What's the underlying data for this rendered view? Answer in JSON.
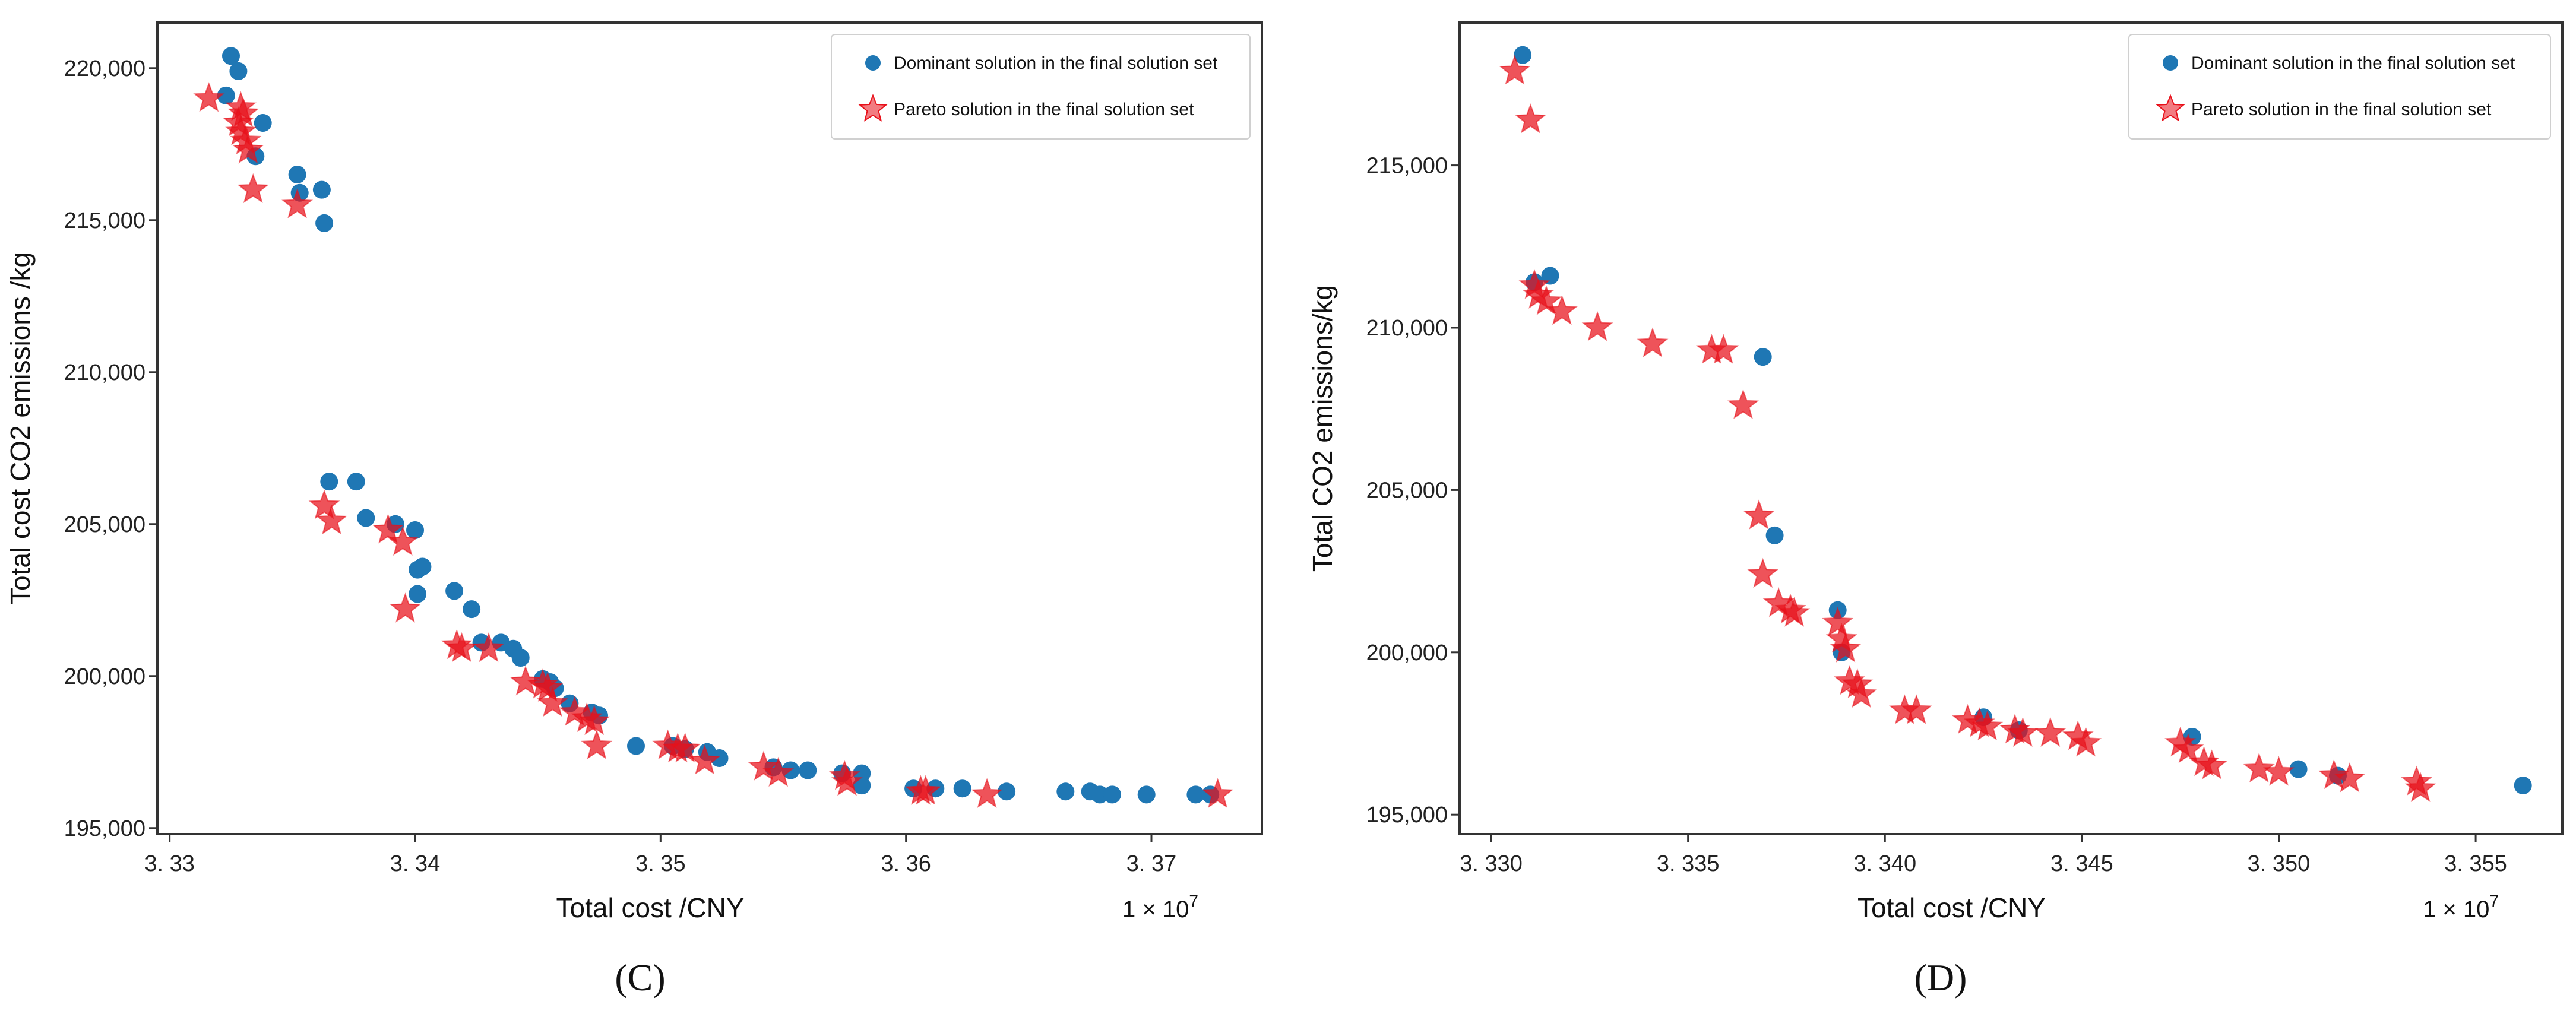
{
  "colors": {
    "dominant": "#1f77b4",
    "pareto": "#e8101a",
    "axes": "#333333"
  },
  "chart_data": [
    {
      "type": "scatter",
      "panel_caption": "(C)",
      "xlabel": "Total cost /CNY",
      "ylabel": "Total cost CO2 emissions /kg",
      "x_multiplier_base": "1 × 10",
      "x_multiplier_exp": "7",
      "xlim": [
        3.3295,
        3.3745
      ],
      "ylim": [
        194800,
        221500
      ],
      "xticks": [
        3.33,
        3.34,
        3.35,
        3.36,
        3.37
      ],
      "xtick_labels": [
        "3. 33",
        "3. 34",
        "3. 35",
        "3. 36",
        "3. 37"
      ],
      "yticks": [
        195000,
        200000,
        205000,
        210000,
        215000,
        220000
      ],
      "ytick_labels": [
        "195,000",
        "200,000",
        "205,000",
        "210,000",
        "215,000",
        "220,000"
      ],
      "legend_position": "top-right",
      "series": [
        {
          "name": "Dominant solution in the final solution set",
          "marker": "circle",
          "points": [
            [
              3.3325,
              220400
            ],
            [
              3.3328,
              219900
            ],
            [
              3.3323,
              219100
            ],
            [
              3.3338,
              218200
            ],
            [
              3.3335,
              217100
            ],
            [
              3.3352,
              216500
            ],
            [
              3.3353,
              215900
            ],
            [
              3.3362,
              216000
            ],
            [
              3.3363,
              214900
            ],
            [
              3.3365,
              206400
            ],
            [
              3.3376,
              206400
            ],
            [
              3.338,
              205200
            ],
            [
              3.3392,
              205000
            ],
            [
              3.34,
              204800
            ],
            [
              3.3401,
              203500
            ],
            [
              3.3403,
              203600
            ],
            [
              3.3401,
              202700
            ],
            [
              3.3416,
              202800
            ],
            [
              3.3423,
              202200
            ],
            [
              3.3427,
              201100
            ],
            [
              3.3435,
              201100
            ],
            [
              3.344,
              200900
            ],
            [
              3.3443,
              200600
            ],
            [
              3.3452,
              199900
            ],
            [
              3.3455,
              199800
            ],
            [
              3.3457,
              199600
            ],
            [
              3.3463,
              199100
            ],
            [
              3.3472,
              198800
            ],
            [
              3.3475,
              198700
            ],
            [
              3.349,
              197700
            ],
            [
              3.3505,
              197700
            ],
            [
              3.351,
              197600
            ],
            [
              3.3519,
              197500
            ],
            [
              3.3524,
              197300
            ],
            [
              3.3546,
              197000
            ],
            [
              3.3553,
              196900
            ],
            [
              3.356,
              196900
            ],
            [
              3.3574,
              196800
            ],
            [
              3.3582,
              196800
            ],
            [
              3.3582,
              196400
            ],
            [
              3.3603,
              196300
            ],
            [
              3.3612,
              196300
            ],
            [
              3.3623,
              196300
            ],
            [
              3.3641,
              196200
            ],
            [
              3.3665,
              196200
            ],
            [
              3.3675,
              196200
            ],
            [
              3.3679,
              196100
            ],
            [
              3.3684,
              196100
            ],
            [
              3.3698,
              196100
            ],
            [
              3.3718,
              196100
            ],
            [
              3.3724,
              196100
            ]
          ]
        },
        {
          "name": "Pareto solution in the final solution set",
          "marker": "star",
          "points": [
            [
              3.3316,
              219000
            ],
            [
              3.3329,
              218700
            ],
            [
              3.333,
              218500
            ],
            [
              3.3328,
              218200
            ],
            [
              3.3329,
              217900
            ],
            [
              3.3331,
              217600
            ],
            [
              3.3332,
              217300
            ],
            [
              3.3334,
              216000
            ],
            [
              3.3352,
              215500
            ],
            [
              3.3363,
              205600
            ],
            [
              3.3366,
              205100
            ],
            [
              3.3389,
              204800
            ],
            [
              3.3395,
              204400
            ],
            [
              3.3396,
              202200
            ],
            [
              3.3417,
              201000
            ],
            [
              3.3419,
              200900
            ],
            [
              3.343,
              200900
            ],
            [
              3.3445,
              199800
            ],
            [
              3.3452,
              199700
            ],
            [
              3.3454,
              199600
            ],
            [
              3.3456,
              199100
            ],
            [
              3.3465,
              198800
            ],
            [
              3.347,
              198600
            ],
            [
              3.3473,
              198500
            ],
            [
              3.3474,
              197700
            ],
            [
              3.3503,
              197700
            ],
            [
              3.3507,
              197600
            ],
            [
              3.351,
              197600
            ],
            [
              3.3518,
              197200
            ],
            [
              3.3542,
              197000
            ],
            [
              3.3548,
              196800
            ],
            [
              3.3575,
              196700
            ],
            [
              3.3576,
              196500
            ],
            [
              3.3606,
              196200
            ],
            [
              3.3608,
              196200
            ],
            [
              3.3633,
              196100
            ],
            [
              3.3727,
              196100
            ]
          ]
        }
      ]
    },
    {
      "type": "scatter",
      "panel_caption": "(D)",
      "xlabel": "Total cost /CNY",
      "ylabel": "Total CO2 emissions/kg",
      "x_multiplier_base": "1 × 10",
      "x_multiplier_exp": "7",
      "xlim": [
        3.3292,
        3.3572
      ],
      "ylim": [
        194400,
        219400
      ],
      "xticks": [
        3.33,
        3.335,
        3.34,
        3.345,
        3.35,
        3.355
      ],
      "xtick_labels": [
        "3. 330",
        "3. 335",
        "3. 340",
        "3. 345",
        "3. 350",
        "3. 355"
      ],
      "yticks": [
        195000,
        200000,
        205000,
        210000,
        215000
      ],
      "ytick_labels": [
        "195,000",
        "200,000",
        "205,000",
        "210,000",
        "215,000"
      ],
      "legend_position": "top-right",
      "series": [
        {
          "name": "Dominant solution in the final solution set",
          "marker": "circle",
          "points": [
            [
              3.3308,
              218400
            ],
            [
              3.3311,
              211400
            ],
            [
              3.3315,
              211600
            ],
            [
              3.3369,
              209100
            ],
            [
              3.3372,
              203600
            ],
            [
              3.3388,
              201300
            ],
            [
              3.3389,
              200000
            ],
            [
              3.3425,
              198000
            ],
            [
              3.3434,
              197600
            ],
            [
              3.3478,
              197400
            ],
            [
              3.3505,
              196400
            ],
            [
              3.3515,
              196200
            ],
            [
              3.3562,
              195900
            ]
          ]
        },
        {
          "name": "Pareto solution in the final solution set",
          "marker": "star",
          "points": [
            [
              3.3306,
              217900
            ],
            [
              3.331,
              216400
            ],
            [
              3.3311,
              211300
            ],
            [
              3.3312,
              211000
            ],
            [
              3.3314,
              210800
            ],
            [
              3.3318,
              210500
            ],
            [
              3.3327,
              210000
            ],
            [
              3.3341,
              209500
            ],
            [
              3.3356,
              209300
            ],
            [
              3.3359,
              209300
            ],
            [
              3.3364,
              207600
            ],
            [
              3.3368,
              204200
            ],
            [
              3.3369,
              202400
            ],
            [
              3.3373,
              201500
            ],
            [
              3.3376,
              201300
            ],
            [
              3.3377,
              201200
            ],
            [
              3.3388,
              200900
            ],
            [
              3.3389,
              200400
            ],
            [
              3.339,
              200100
            ],
            [
              3.3391,
              199100
            ],
            [
              3.3393,
              199000
            ],
            [
              3.3394,
              198700
            ],
            [
              3.3405,
              198200
            ],
            [
              3.3408,
              198200
            ],
            [
              3.3421,
              197900
            ],
            [
              3.3424,
              197800
            ],
            [
              3.3426,
              197700
            ],
            [
              3.3433,
              197600
            ],
            [
              3.3435,
              197500
            ],
            [
              3.3442,
              197500
            ],
            [
              3.3449,
              197400
            ],
            [
              3.3451,
              197200
            ],
            [
              3.3475,
              197200
            ],
            [
              3.3477,
              197000
            ],
            [
              3.3481,
              196600
            ],
            [
              3.3483,
              196500
            ],
            [
              3.3495,
              196400
            ],
            [
              3.35,
              196300
            ],
            [
              3.3514,
              196200
            ],
            [
              3.3518,
              196100
            ],
            [
              3.3535,
              196000
            ],
            [
              3.3536,
              195800
            ]
          ]
        }
      ]
    }
  ]
}
